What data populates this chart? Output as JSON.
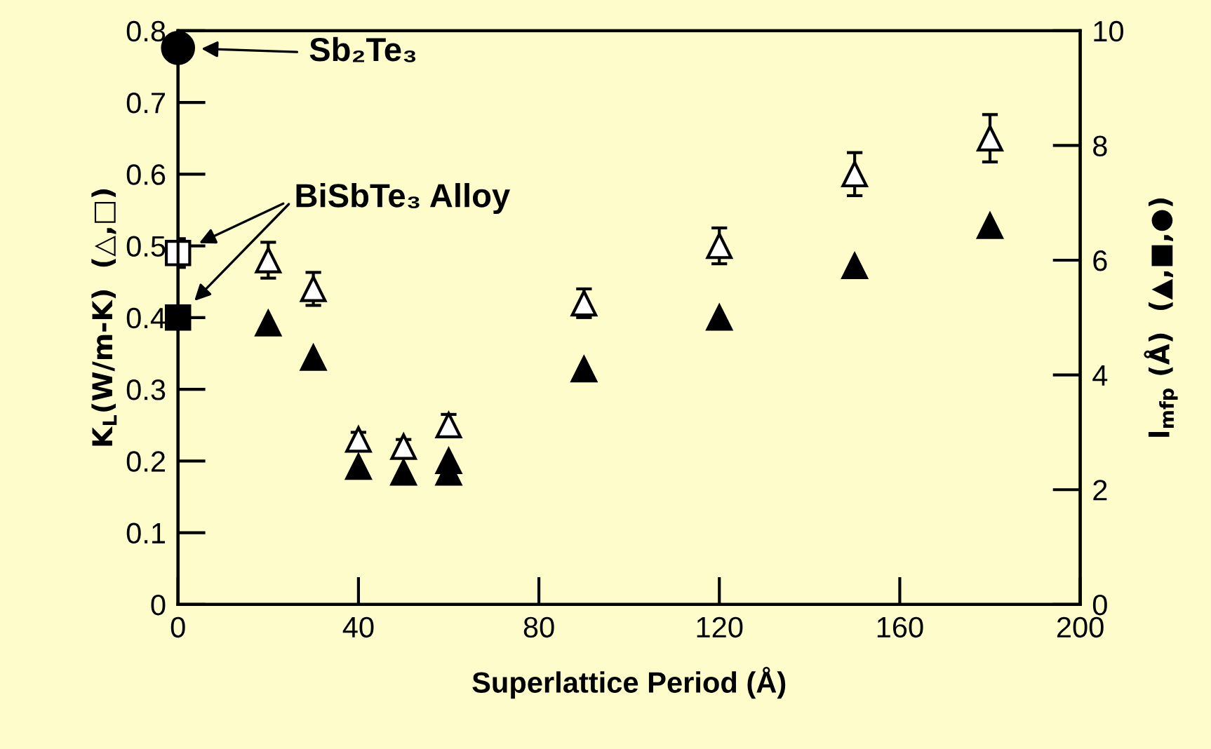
{
  "chart_data": {
    "type": "scatter",
    "xlabel": "Superlattice Period (Å)",
    "ylabel": "K$_{L}$(W/m-K)  (△,□)",
    "y2label": "l$_{mfp}$ (Å)  (▲,■,●)",
    "xlim": [
      0,
      200
    ],
    "xticks": [
      0,
      40,
      80,
      120,
      160,
      200
    ],
    "ylim": [
      0,
      0.8
    ],
    "yticks": [
      0,
      0.1,
      0.2,
      0.3,
      0.4,
      0.5,
      0.6,
      0.7,
      0.8
    ],
    "y2lim": [
      0,
      10
    ],
    "y2ticks": [
      0,
      2,
      4,
      6,
      8,
      10
    ],
    "grid": false,
    "legend": false,
    "series": [
      {
        "marker": "triangle",
        "color": "#ffffff",
        "x": [
          20,
          30,
          40,
          50,
          60,
          90,
          120,
          150,
          180
        ],
        "values": [
          0.48,
          0.44,
          0.23,
          0.22,
          0.25,
          0.42,
          0.5,
          0.6,
          0.65
        ],
        "errors": [
          0.025,
          0.023,
          0.01,
          0.01,
          0.015,
          0.02,
          0.025,
          0.03,
          0.033
        ]
      },
      {
        "marker": "square",
        "color": "#ffffff",
        "x": [
          0
        ],
        "values": [
          0.49
        ],
        "errors": [
          0.02
        ]
      },
      {
        "marker": "triangle",
        "color": "#000000",
        "axis": "y2",
        "x": [
          20,
          30,
          40,
          50,
          60,
          60,
          90,
          120,
          150,
          180
        ],
        "values": [
          4.9,
          4.3,
          2.4,
          2.3,
          2.5,
          2.3,
          4.1,
          5.0,
          5.9,
          6.6
        ]
      },
      {
        "marker": "square",
        "color": "#000000",
        "axis": "y2",
        "x": [
          0
        ],
        "values": [
          5.0
        ]
      },
      {
        "marker": "circle",
        "color": "#000000",
        "axis": "y2",
        "x": [
          0
        ],
        "values": [
          9.7
        ]
      }
    ],
    "annotations": [
      "Sb₂Te₃",
      "BiSbTe₃ Alloy"
    ]
  }
}
